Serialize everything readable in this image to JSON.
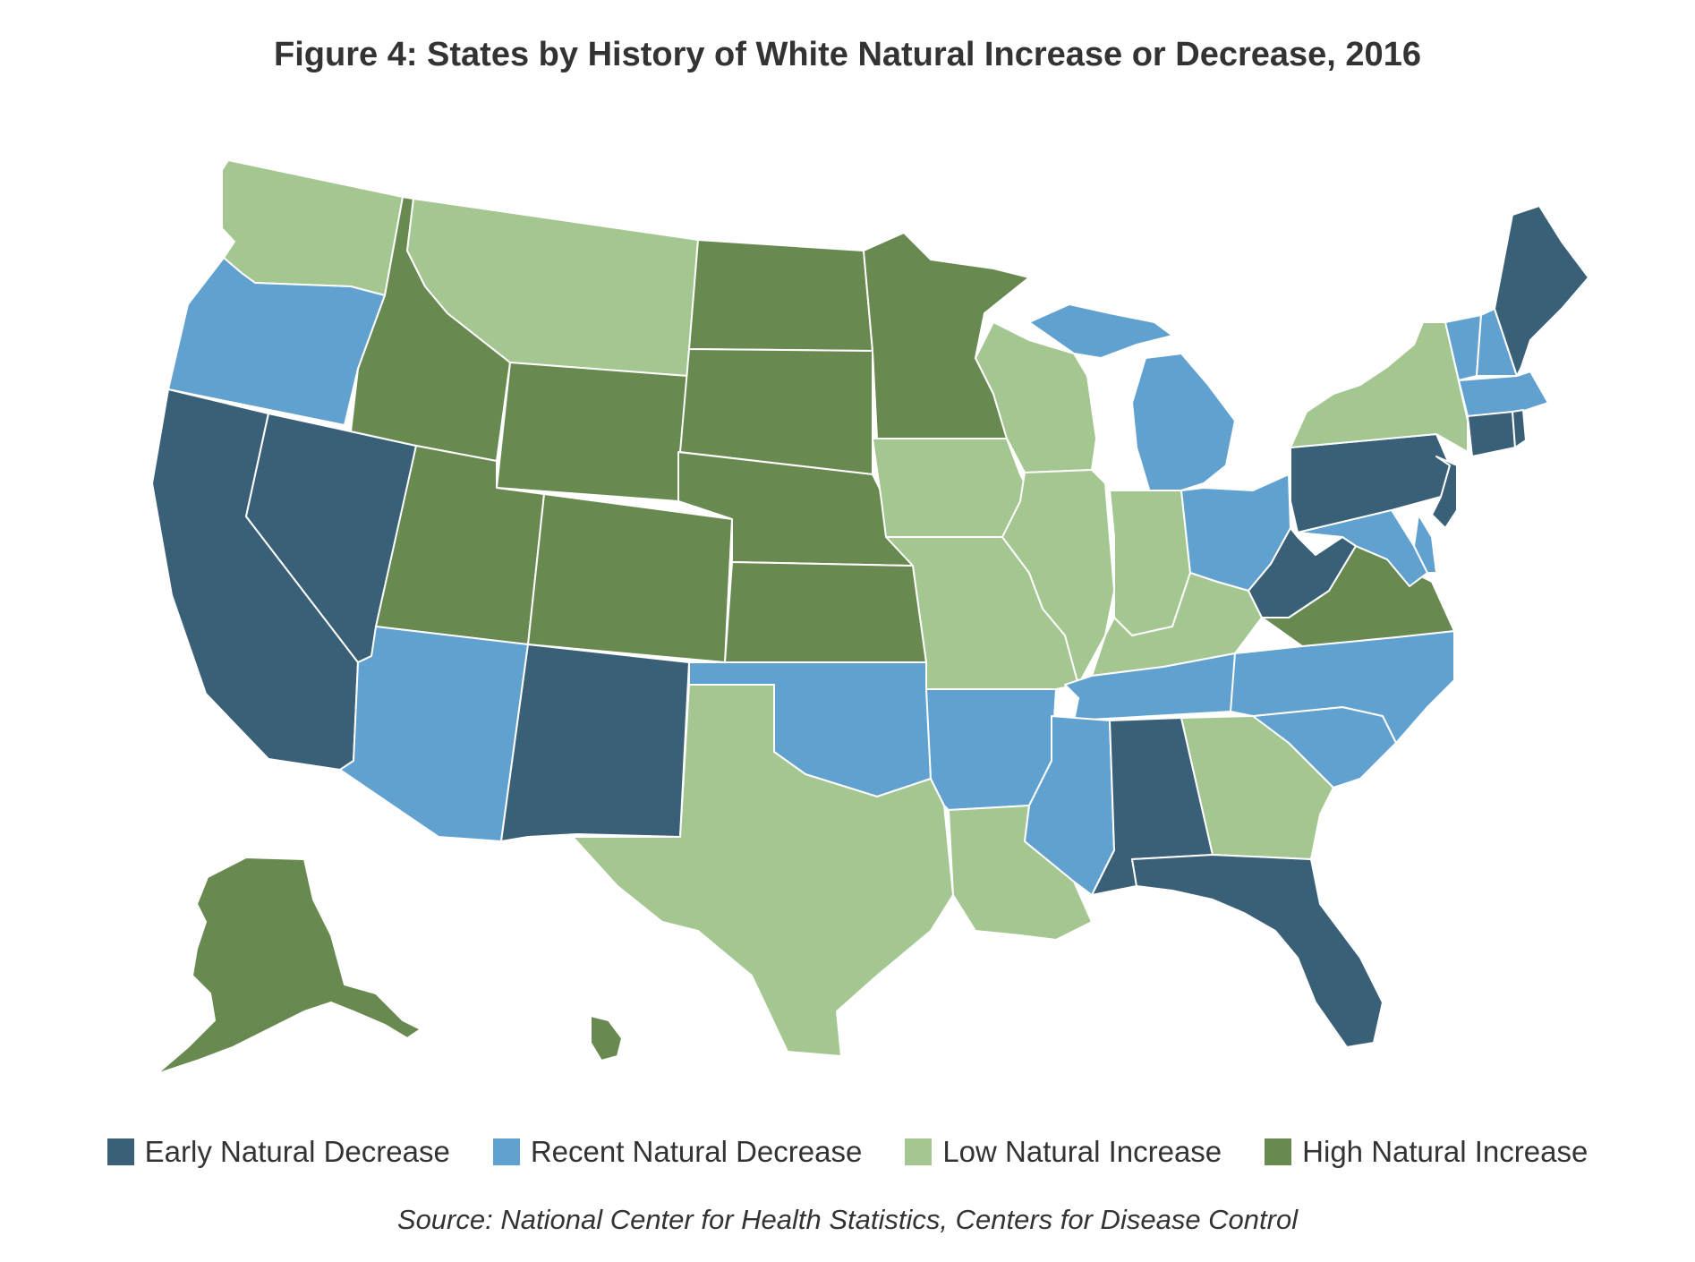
{
  "title": "Figure 4: States by History of White Natural Increase or Decrease, 2016",
  "source": "Source: National Center for Health Statistics, Centers for Disease Control",
  "categories": [
    {
      "key": "early",
      "label": "Early Natural Decrease",
      "color": "#3a6078"
    },
    {
      "key": "recent",
      "label": "Recent Natural Decrease",
      "color": "#61a1cf"
    },
    {
      "key": "low",
      "label": "Low Natural Increase",
      "color": "#a4c690"
    },
    {
      "key": "high",
      "label": "High Natural Increase",
      "color": "#688a50"
    }
  ],
  "states": {
    "early": [
      "CA",
      "NV",
      "NM",
      "AL",
      "FL",
      "PA",
      "NJ",
      "CT",
      "RI",
      "WV",
      "ME"
    ],
    "recent": [
      "OR",
      "AZ",
      "OK",
      "AR",
      "MS",
      "TN",
      "NC",
      "SC",
      "OH",
      "MI",
      "MD",
      "DE",
      "MA",
      "VT",
      "NH"
    ],
    "low": [
      "WA",
      "MT",
      "TX",
      "LA",
      "MO",
      "IA",
      "WI",
      "IL",
      "IN",
      "KY",
      "GA",
      "NY"
    ],
    "high": [
      "ID",
      "UT",
      "WY",
      "CO",
      "ND",
      "SD",
      "NE",
      "KS",
      "MN",
      "VA",
      "AK",
      "HI"
    ]
  }
}
